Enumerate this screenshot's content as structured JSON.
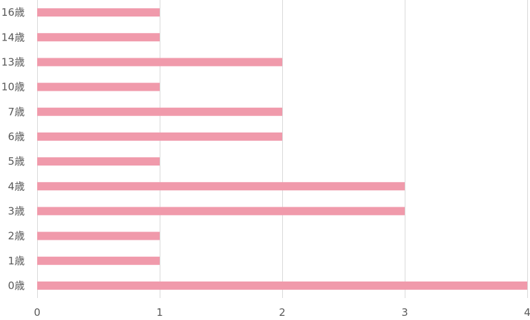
{
  "chart_data": {
    "type": "bar",
    "orientation": "horizontal",
    "categories": [
      "0歳",
      "1歳",
      "2歳",
      "3歳",
      "4歳",
      "5歳",
      "6歳",
      "7歳",
      "10歳",
      "13歳",
      "14歳",
      "16歳"
    ],
    "values": [
      4,
      1,
      1,
      3,
      3,
      1,
      2,
      2,
      1,
      2,
      1,
      1
    ],
    "xlim": [
      0,
      4
    ],
    "xticks": [
      0,
      1,
      2,
      3,
      4
    ],
    "grid": true,
    "legend": "none",
    "bar_color": "#f09aab",
    "grid_color": "#d9d9d9",
    "label_color": "#595959"
  }
}
